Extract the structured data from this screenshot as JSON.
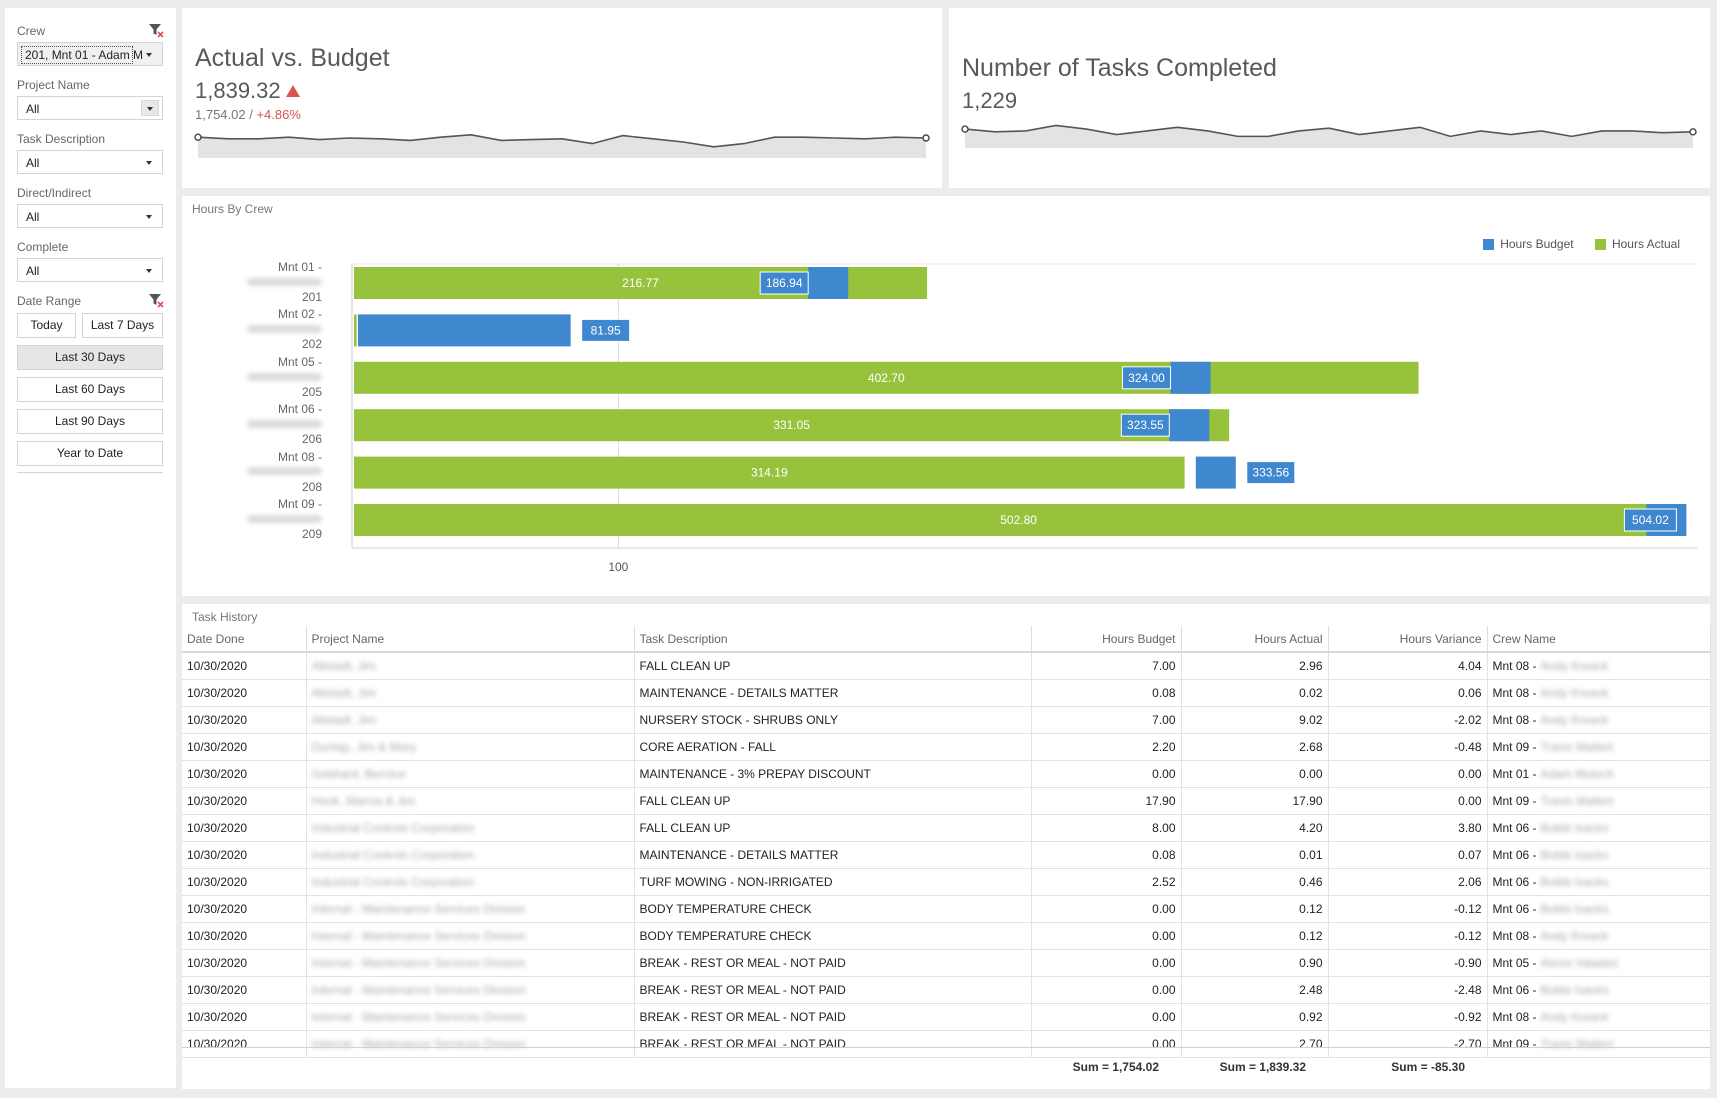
{
  "sidebar": {
    "crew_label": "Crew",
    "crew_value": "201, Mnt 01 - Adam M",
    "project_label": "Project Name",
    "project_value": "All",
    "task_label": "Task Description",
    "task_value": "All",
    "direct_label": "Direct/Indirect",
    "direct_value": "All",
    "complete_label": "Complete",
    "complete_value": "All",
    "date_label": "Date Range",
    "date_buttons": {
      "today": "Today",
      "last7": "Last 7 Days",
      "last30": "Last 30 Days",
      "last60": "Last 60 Days",
      "last90": "Last 90 Days",
      "ytd": "Year to Date"
    }
  },
  "kpi_budget": {
    "title": "Actual vs. Budget",
    "value": "1,839.32",
    "target": "1,754.02",
    "separator": " / ",
    "delta": "+4.86%"
  },
  "kpi_tasks": {
    "title": "Number of Tasks Completed",
    "value": "1,229"
  },
  "hours_chart": {
    "caption": "Hours By Crew",
    "legend_budget": "Hours Budget",
    "legend_actual": "Hours Actual",
    "tick_100": "100",
    "colors": {
      "budget": "#3f87cf",
      "actual": "#97c33c"
    }
  },
  "chart_data": {
    "type": "bar",
    "orientation": "horizontal",
    "title": "Hours By Crew",
    "categories": [
      {
        "line1": "Mnt 01 -",
        "line2": "201"
      },
      {
        "line1": "Mnt 02 -",
        "line2": "202"
      },
      {
        "line1": "Mnt 05 -",
        "line2": "205"
      },
      {
        "line1": "Mnt 06 -",
        "line2": "206"
      },
      {
        "line1": "Mnt 08 -",
        "line2": "208"
      },
      {
        "line1": "Mnt 09 -",
        "line2": "209"
      }
    ],
    "series": [
      {
        "name": "Hours Actual",
        "values": [
          216.77,
          1.0,
          402.7,
          331.05,
          314.19,
          502.8
        ],
        "labels": [
          "216.77",
          "",
          "402.70",
          "331.05",
          "314.19",
          "502.80"
        ]
      },
      {
        "name": "Hours Budget",
        "values": [
          186.94,
          81.95,
          324.0,
          323.55,
          333.56,
          504.02
        ],
        "labels": [
          "186.94",
          "81.95",
          "324.00",
          "323.55",
          "333.56",
          "504.02"
        ]
      }
    ],
    "x_ticks": [
      100
    ],
    "xlim": [
      0,
      505
    ],
    "legend_position": "top-right"
  },
  "spark_budget": [
    48,
    50,
    50,
    48,
    51,
    49,
    50,
    52,
    48,
    45,
    52,
    51,
    50,
    56,
    46,
    50,
    54,
    60,
    56,
    48,
    48,
    49,
    50,
    48,
    49
  ],
  "spark_tasks": [
    58,
    61,
    60,
    54,
    58,
    64,
    60,
    56,
    60,
    66,
    66,
    60,
    57,
    64,
    60,
    56,
    66,
    60,
    64,
    60,
    66,
    60,
    60,
    62,
    61
  ],
  "task_history": {
    "caption": "Task History",
    "columns": [
      "Date Done",
      "Project Name",
      "Task Description",
      "Hours Budget",
      "Hours Actual",
      "Hours Variance",
      "Crew Name"
    ],
    "rows": [
      [
        "10/30/2020",
        "Allstadt, Jim",
        "FALL CLEAN UP",
        "7.00",
        "2.96",
        "4.04",
        "Mnt 08 -",
        "Andy Kreack"
      ],
      [
        "10/30/2020",
        "Allstadt, Jim",
        "MAINTENANCE - DETAILS MATTER",
        "0.08",
        "0.02",
        "0.06",
        "Mnt 08 -",
        "Andy Kreack"
      ],
      [
        "10/30/2020",
        "Allstadt, Jim",
        "NURSERY STOCK - SHRUBS ONLY",
        "7.00",
        "9.02",
        "-2.02",
        "Mnt 08 -",
        "Andy Kreack"
      ],
      [
        "10/30/2020",
        "Dunlap, Jim & Mary",
        "CORE AERATION - FALL",
        "2.20",
        "2.68",
        "-0.48",
        "Mnt 09 -",
        "Travis Mattert"
      ],
      [
        "10/30/2020",
        "Gebhard, Bernice",
        "MAINTENANCE - 3% PREPAY DISCOUNT",
        "0.00",
        "0.00",
        "0.00",
        "Mnt 01 -",
        "Adam Mutsch"
      ],
      [
        "10/30/2020",
        "Hook, Marcia & Jim",
        "FALL CLEAN UP",
        "17.90",
        "17.90",
        "0.00",
        "Mnt 09 -",
        "Travis Mattert"
      ],
      [
        "10/30/2020",
        "Industrial Controls Corporation",
        "FALL CLEAN UP",
        "8.00",
        "4.20",
        "3.80",
        "Mnt 06 -",
        "Bobbi Isacks"
      ],
      [
        "10/30/2020",
        "Industrial Controls Corporation",
        "MAINTENANCE - DETAILS MATTER",
        "0.08",
        "0.01",
        "0.07",
        "Mnt 06 -",
        "Bobbi Isacks"
      ],
      [
        "10/30/2020",
        "Industrial Controls Corporation",
        "TURF MOWING - NON-IRRIGATED",
        "2.52",
        "0.46",
        "2.06",
        "Mnt 06 -",
        "Bobbi Isacks"
      ],
      [
        "10/30/2020",
        "Internal - Maintenance Services Division",
        "BODY TEMPERATURE CHECK",
        "0.00",
        "0.12",
        "-0.12",
        "Mnt 06 -",
        "Bobbi Isacks"
      ],
      [
        "10/30/2020",
        "Internal - Maintenance Services Division",
        "BODY TEMPERATURE CHECK",
        "0.00",
        "0.12",
        "-0.12",
        "Mnt 08 -",
        "Andy Kreack"
      ],
      [
        "10/30/2020",
        "Internal - Maintenance Services Division",
        "BREAK - REST OR MEAL - NOT PAID",
        "0.00",
        "0.90",
        "-0.90",
        "Mnt 05 -",
        "Alexis Valadez"
      ],
      [
        "10/30/2020",
        "Internal - Maintenance Services Division",
        "BREAK - REST OR MEAL - NOT PAID",
        "0.00",
        "2.48",
        "-2.48",
        "Mnt 06 -",
        "Bobbi Isacks"
      ],
      [
        "10/30/2020",
        "Internal - Maintenance Services Division",
        "BREAK - REST OR MEAL - NOT PAID",
        "0.00",
        "0.92",
        "-0.92",
        "Mnt 08 -",
        "Andy Kreack"
      ],
      [
        "10/30/2020",
        "Internal - Maintenance Services Division",
        "BREAK - REST OR MEAL - NOT PAID",
        "0.00",
        "2.70",
        "-2.70",
        "Mnt 09 -",
        "Travis Mattert"
      ]
    ],
    "sum_budget": "Sum = 1,754.02",
    "sum_actual": "Sum = 1,839.32",
    "sum_variance": "Sum = -85.30"
  }
}
